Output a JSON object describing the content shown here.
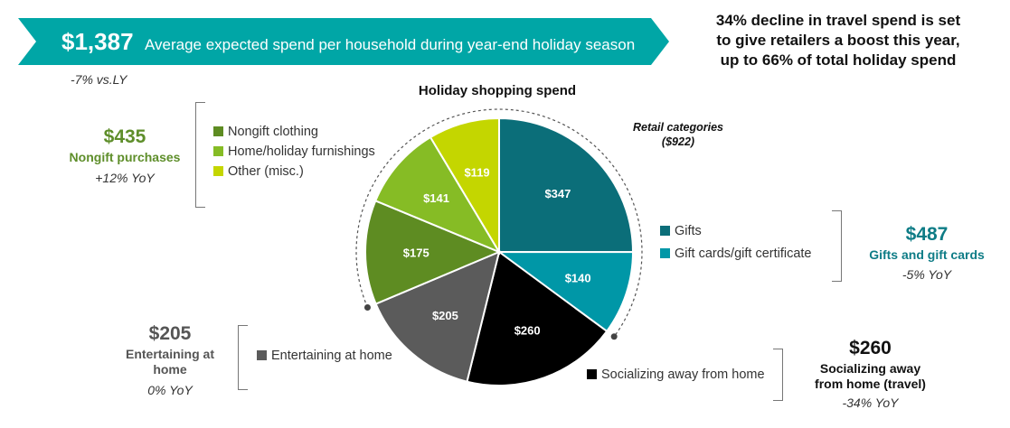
{
  "banner": {
    "amount": "$1,387",
    "description": "Average expected spend per household during year-end holiday season",
    "change": "-7% vs.LY",
    "color": "#00A6A6"
  },
  "headline": {
    "line1": "34% decline in travel spend is set",
    "line2": "to give retailers a boost this year,",
    "line3": "up to 66% of total holiday spend"
  },
  "groups": {
    "nongift": {
      "amount": "$435",
      "name": "Nongift purchases",
      "change": "+12% YoY",
      "color": "#5E8E2A"
    },
    "gifts": {
      "amount": "$487",
      "name": "Gifts and gift cards",
      "change": "-5% YoY",
      "color": "#0E7C86"
    },
    "entertaining": {
      "amount": "$205",
      "name_line1": "Entertaining at",
      "name_line2": "home",
      "change": "0% YoY",
      "color": "#555555"
    },
    "socializing": {
      "amount": "$260",
      "name_line1": "Socializing away",
      "name_line2": "from home (travel)",
      "change": "-34% YoY",
      "color": "#111111"
    }
  },
  "retail_note": {
    "line1": "Retail categories",
    "line2": "($922)"
  },
  "chart_data": {
    "type": "pie",
    "title": "Holiday shopping spend",
    "start_angle_deg": 0,
    "direction": "clockwise",
    "slices": [
      {
        "label": "Gifts",
        "value": 347,
        "value_label": "$347",
        "color": "#0B6E79"
      },
      {
        "label": "Gift cards/gift certificate",
        "value": 140,
        "value_label": "$140",
        "color": "#0097A7"
      },
      {
        "label": "Socializing away from home",
        "value": 260,
        "value_label": "$260",
        "color": "#000000"
      },
      {
        "label": "Entertaining at home",
        "value": 205,
        "value_label": "$205",
        "color": "#5B5B5B"
      },
      {
        "label": "Nongift clothing",
        "value": 175,
        "value_label": "$175",
        "color": "#5E8C22"
      },
      {
        "label": "Home/holiday furnishings",
        "value": 141,
        "value_label": "$141",
        "color": "#86BC25"
      },
      {
        "label": "Other (misc.)",
        "value": 119,
        "value_label": "$119",
        "color": "#C4D600"
      }
    ],
    "retail_slices": [
      "Gifts",
      "Gift cards/gift certificate",
      "Nongift clothing",
      "Home/holiday furnishings",
      "Other (misc.)"
    ]
  }
}
